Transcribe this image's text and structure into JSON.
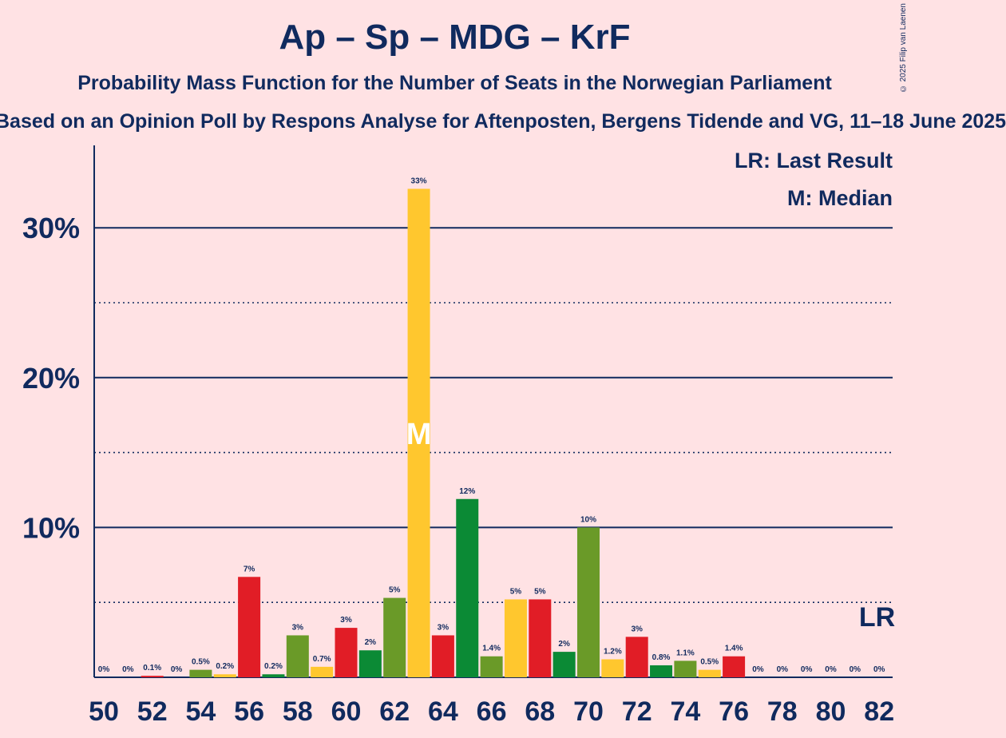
{
  "title": "Ap – Sp – MDG – KrF",
  "subtitle": "Probability Mass Function for the Number of Seats in the Norwegian Parliament",
  "subtitle2": "Based on an Opinion Poll by Respons Analyse for Aftenposten, Bergens Tidende and VG, 11–18 June 2025",
  "copyright": "© 2025 Filip van Laenen",
  "legend": {
    "last_result": "LR: Last Result",
    "median": "M: Median"
  },
  "colors": {
    "background": "#ffe2e4",
    "text": "#102a5e",
    "red": "#e11d26",
    "dark_green": "#0b8a35",
    "olive": "#6a9a28",
    "yellow": "#ffc72e"
  },
  "chart_data": {
    "type": "bar",
    "x": [
      50,
      51,
      52,
      53,
      54,
      55,
      56,
      57,
      58,
      59,
      60,
      61,
      62,
      63,
      64,
      65,
      66,
      67,
      68,
      69,
      70,
      71,
      72,
      73,
      74,
      75,
      76,
      77,
      78,
      79,
      80,
      81,
      82
    ],
    "values": [
      0,
      0,
      0.1,
      0,
      0.5,
      0.2,
      6.7,
      0.2,
      2.8,
      0.7,
      3.3,
      1.8,
      5.3,
      32.6,
      2.8,
      11.9,
      1.4,
      5.2,
      5.2,
      1.7,
      10.0,
      1.2,
      2.7,
      0.8,
      1.1,
      0.5,
      1.4,
      0,
      0,
      0,
      0,
      0,
      0
    ],
    "data_labels": [
      "0%",
      "0%",
      "0.1%",
      "0%",
      "0.5%",
      "0.2%",
      "7%",
      "0.2%",
      "3%",
      "0.7%",
      "3%",
      "2%",
      "5%",
      "33%",
      "3%",
      "12%",
      "1.4%",
      "5%",
      "5%",
      "2%",
      "10%",
      "1.2%",
      "3%",
      "0.8%",
      "1.1%",
      "0.5%",
      "1.4%",
      "0%",
      "0%",
      "0%",
      "0%",
      "0%",
      "0%"
    ],
    "bar_colors": [
      "red",
      "dark_green",
      "red",
      "dark_green",
      "olive",
      "yellow",
      "red",
      "dark_green",
      "olive",
      "yellow",
      "red",
      "dark_green",
      "olive",
      "yellow",
      "red",
      "dark_green",
      "olive",
      "yellow",
      "red",
      "dark_green",
      "olive",
      "yellow",
      "red",
      "dark_green",
      "olive",
      "yellow",
      "red",
      "dark_green",
      "olive",
      "yellow",
      "red",
      "dark_green",
      "olive"
    ],
    "x_tick_labels": [
      "50",
      "52",
      "54",
      "56",
      "58",
      "60",
      "62",
      "64",
      "66",
      "68",
      "70",
      "72",
      "74",
      "76",
      "78",
      "80",
      "82"
    ],
    "y_ticks": [
      10,
      20,
      30
    ],
    "y_tick_labels": [
      "10%",
      "20%",
      "30%"
    ],
    "y_minor_ticks": [
      5,
      15,
      25
    ],
    "ylim": [
      0,
      35
    ],
    "median_seat": 63,
    "median_label": "M",
    "last_result_seat": 82,
    "last_result_label": "LR",
    "grid": true,
    "legend_position": "top-right"
  }
}
